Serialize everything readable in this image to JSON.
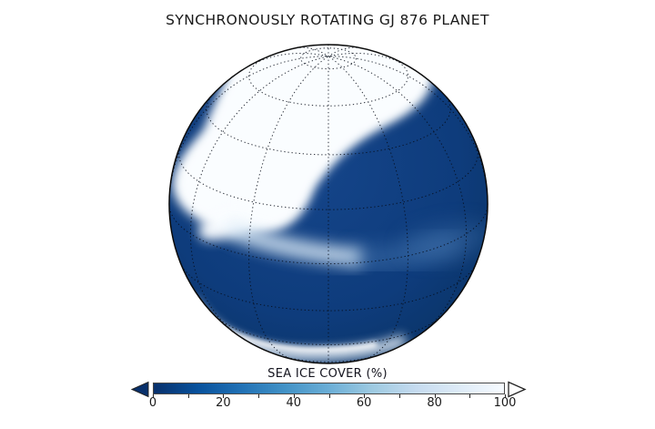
{
  "figure": {
    "title": "SYNCHRONOUSLY ROTATING GJ 876 PLANET",
    "background_color": "#ffffff",
    "title_color": "#191919"
  },
  "globe": {
    "projection": "orthographic",
    "center_latitude_deg": 22,
    "center_longitude_deg": 0,
    "graticule_meridian_step_deg": 30,
    "graticule_parallel_step_deg": 20,
    "gridline_color": "rgba(6,12,24,0.85)",
    "outline_color": "#0b0b0b",
    "ocean_center_color": "#15458a",
    "ocean_color": "#0e3c7c",
    "ocean_edge_color": "#09315f",
    "ice_color": "#fafdff",
    "band_bright_color": "#dcebf7",
    "band_faint_color": "#5585bb",
    "haze_color": "#4f80b6",
    "arc_color": "#eef6fc",
    "arc_core_color": "#ffffff"
  },
  "colorbar": {
    "label": "SEA ICE COVER (%)",
    "tick_labels": [
      "0",
      "20",
      "40",
      "60",
      "80",
      "100"
    ],
    "minor_tick_step_percent": 10,
    "range_min": 0,
    "range_max": 100,
    "colormap_stops": [
      "#08306b",
      "#08519c",
      "#2171b5",
      "#4292c6",
      "#6baed6",
      "#9ecae1",
      "#c6dbef",
      "#deebf7",
      "#f7fbff"
    ],
    "left_arrow_color": "#08306b",
    "right_arrow_color": "#ffffff",
    "arrow_outline_color": "#222222"
  },
  "chart_data": {
    "type": "heatmap",
    "title": "SYNCHRONOUSLY ROTATING GJ 876 PLANET",
    "variable": "SEA ICE COVER (%)",
    "value_range": [
      0,
      100
    ],
    "colorbar_ticks": [
      0,
      20,
      40,
      60,
      80,
      100
    ],
    "colormap": "dark navy blue at 0% sea ice grading to white at 100% sea ice (Blues reversed)",
    "colorbar_extensions": "arrow at both ends (left filled dark blue, right open white)",
    "projection": "orthographic globe, north pole tilted toward viewer (disk center near 22N, pole visible near top of disk), dotted graticule",
    "regions": [
      {
        "region": "north polar cap spreading from visible pole across upper and upper-left of disk, with lobe bulging toward upper-right limb",
        "sea_ice_percent": 100
      },
      {
        "region": "tongue of ice running down the left limb to roughly the 20N parallel",
        "sea_ice_percent": 85
      },
      {
        "region": "curved band arcing from the left-limb tongue rightward toward disk center, fading eastward",
        "sea_ice_percent": 40
      },
      {
        "region": "faint diffuse patch right of disk center at low northern latitudes",
        "sea_ice_percent": 15
      },
      {
        "region": "bright arc hugging the lower-left limb (southern high latitudes)",
        "sea_ice_percent": 90
      },
      {
        "region": "remaining ocean (center, right and lower disk)",
        "sea_ice_percent": 0
      }
    ]
  }
}
